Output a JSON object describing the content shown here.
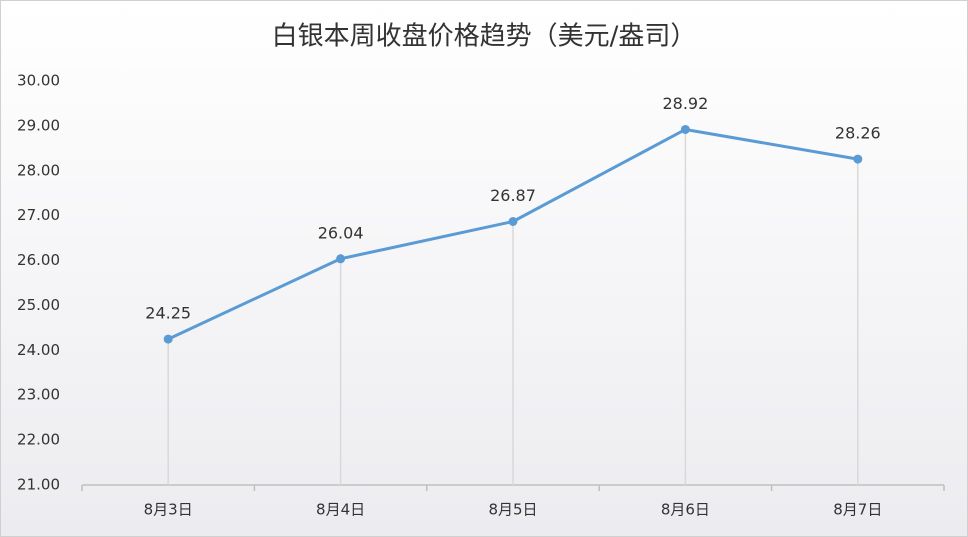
{
  "chart_data": {
    "type": "line",
    "title": "白银本周收盘价格趋势（美元/盎司）",
    "categories": [
      "8月3日",
      "8月4日",
      "8月5日",
      "8月6日",
      "8月7日"
    ],
    "series": [
      {
        "name": "收盘价格",
        "color": "#5b9bd5",
        "values": [
          24.25,
          26.04,
          26.87,
          28.92,
          28.26
        ]
      }
    ],
    "ylim": [
      21,
      30
    ],
    "yticks": [
      {
        "value": 21,
        "label": "21.00"
      },
      {
        "value": 22,
        "label": "22.00"
      },
      {
        "value": 23,
        "label": "23.00"
      },
      {
        "value": 24,
        "label": "24.00"
      },
      {
        "value": 25,
        "label": "25.00"
      },
      {
        "value": 26,
        "label": "26.00"
      },
      {
        "value": 27,
        "label": "27.00"
      },
      {
        "value": 28,
        "label": "28.00"
      },
      {
        "value": 29,
        "label": "29.00"
      },
      {
        "value": 30,
        "label": "30.00"
      }
    ],
    "grid": false,
    "drop_lines": true,
    "data_labels": true
  }
}
